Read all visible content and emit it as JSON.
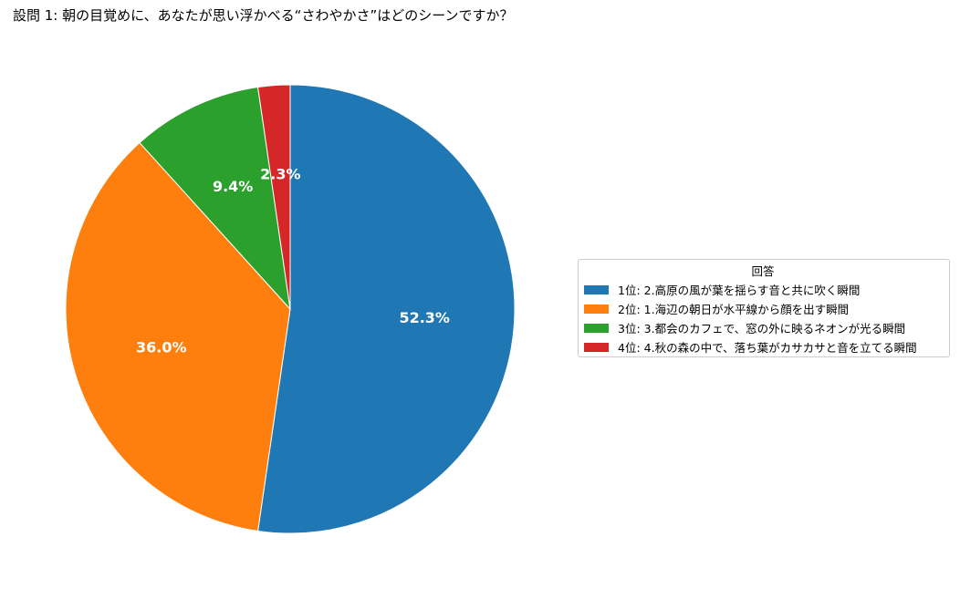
{
  "chart_data": {
    "type": "pie",
    "title": "設問 1: 朝の目覚めに、あなたが思い浮かべる“さわやかさ”はどのシーンですか？",
    "legend_title": "回答",
    "legend_position": "right",
    "start_angle": 90,
    "direction": "clockwise",
    "slices": [
      {
        "label": "1位: 2.高原の風が葉を揺らす音と共に吹く瞬間",
        "value": 52.3,
        "display": "52.3%",
        "color": "#1f77b4"
      },
      {
        "label": "2位: 1.海辺の朝日が水平線から顔を出す瞬間",
        "value": 36.0,
        "display": "36.0%",
        "color": "#ff7f0e"
      },
      {
        "label": "3位: 3.都会のカフェで、窓の外に映るネオンが光る瞬間",
        "value": 9.4,
        "display": "9.4%",
        "color": "#2ca02c"
      },
      {
        "label": "4位: 4.秋の森の中で、落ち葉がカサカサと音を立てる瞬間",
        "value": 2.3,
        "display": "2.3%",
        "color": "#d62728"
      }
    ]
  }
}
